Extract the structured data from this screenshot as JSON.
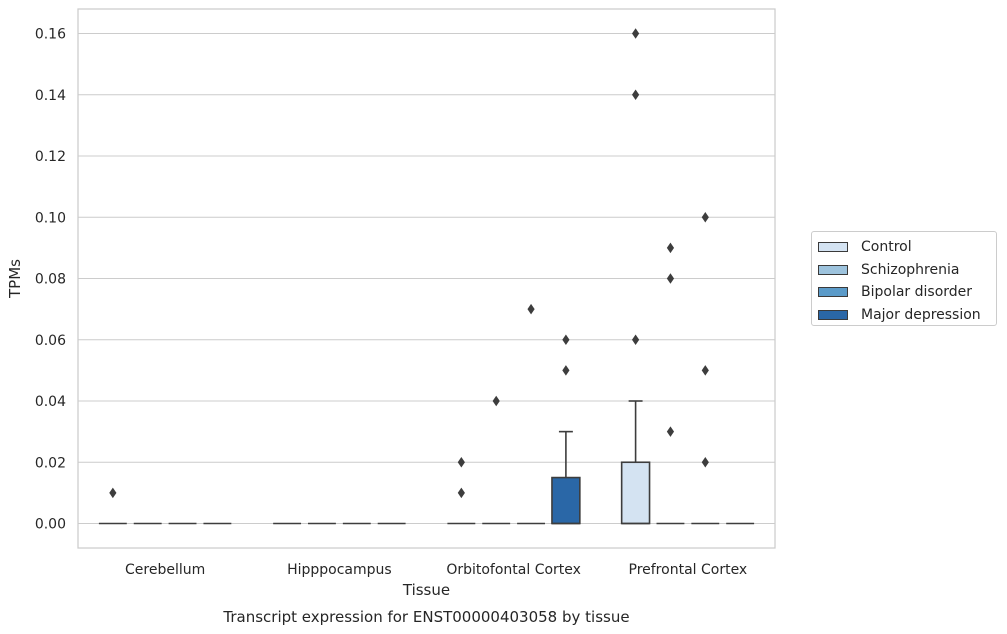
{
  "chart_data": {
    "type": "box",
    "title": "",
    "xlabel": "Tissue",
    "ylabel": "TPMs",
    "caption": "Transcript expression for ENST00000403058 by tissue",
    "ylim": [
      -0.008,
      0.168
    ],
    "yticks": [
      0.0,
      0.02,
      0.04,
      0.06,
      0.08,
      0.1,
      0.12,
      0.14,
      0.16
    ],
    "ytick_labels": [
      "0.00",
      "0.02",
      "0.04",
      "0.06",
      "0.08",
      "0.10",
      "0.12",
      "0.14",
      "0.16"
    ],
    "grid": true,
    "legend_position": "right",
    "categories": [
      "Cerebellum",
      "Hipppocampus",
      "Orbitofontal Cortex",
      "Prefrontal Cortex"
    ],
    "series": [
      {
        "name": "Control",
        "color": "#d4e3f2",
        "boxes": [
          {
            "q1": 0,
            "median": 0,
            "q3": 0,
            "whisker_low": 0,
            "whisker_high": 0,
            "outliers": [
              0.01
            ]
          },
          {
            "q1": 0,
            "median": 0,
            "q3": 0,
            "whisker_low": 0,
            "whisker_high": 0,
            "outliers": []
          },
          {
            "q1": 0,
            "median": 0,
            "q3": 0,
            "whisker_low": 0,
            "whisker_high": 0,
            "outliers": [
              0.01,
              0.02
            ]
          },
          {
            "q1": 0,
            "median": 0,
            "q3": 0.02,
            "whisker_low": 0,
            "whisker_high": 0.04,
            "outliers": [
              0.06,
              0.14,
              0.16
            ]
          }
        ]
      },
      {
        "name": "Schizophrenia",
        "color": "#9dc3dd",
        "boxes": [
          {
            "q1": 0,
            "median": 0,
            "q3": 0,
            "whisker_low": 0,
            "whisker_high": 0,
            "outliers": []
          },
          {
            "q1": 0,
            "median": 0,
            "q3": 0,
            "whisker_low": 0,
            "whisker_high": 0,
            "outliers": []
          },
          {
            "q1": 0,
            "median": 0,
            "q3": 0,
            "whisker_low": 0,
            "whisker_high": 0,
            "outliers": [
              0.04
            ]
          },
          {
            "q1": 0,
            "median": 0,
            "q3": 0,
            "whisker_low": 0,
            "whisker_high": 0,
            "outliers": [
              0.03,
              0.08,
              0.09
            ]
          }
        ]
      },
      {
        "name": "Bipolar disorder",
        "color": "#5b9bc9",
        "boxes": [
          {
            "q1": 0,
            "median": 0,
            "q3": 0,
            "whisker_low": 0,
            "whisker_high": 0,
            "outliers": []
          },
          {
            "q1": 0,
            "median": 0,
            "q3": 0,
            "whisker_low": 0,
            "whisker_high": 0,
            "outliers": []
          },
          {
            "q1": 0,
            "median": 0,
            "q3": 0,
            "whisker_low": 0,
            "whisker_high": 0,
            "outliers": [
              0.07
            ]
          },
          {
            "q1": 0,
            "median": 0,
            "q3": 0,
            "whisker_low": 0,
            "whisker_high": 0,
            "outliers": [
              0.02,
              0.05,
              0.1
            ]
          }
        ]
      },
      {
        "name": "Major depression",
        "color": "#2a67a7",
        "boxes": [
          {
            "q1": 0,
            "median": 0,
            "q3": 0,
            "whisker_low": 0,
            "whisker_high": 0,
            "outliers": []
          },
          {
            "q1": 0,
            "median": 0,
            "q3": 0,
            "whisker_low": 0,
            "whisker_high": 0,
            "outliers": []
          },
          {
            "q1": 0,
            "median": 0,
            "q3": 0.015,
            "whisker_low": 0,
            "whisker_high": 0.03,
            "outliers": [
              0.05,
              0.06
            ]
          },
          {
            "q1": 0,
            "median": 0,
            "q3": 0,
            "whisker_low": 0,
            "whisker_high": 0,
            "outliers": []
          }
        ]
      }
    ]
  }
}
